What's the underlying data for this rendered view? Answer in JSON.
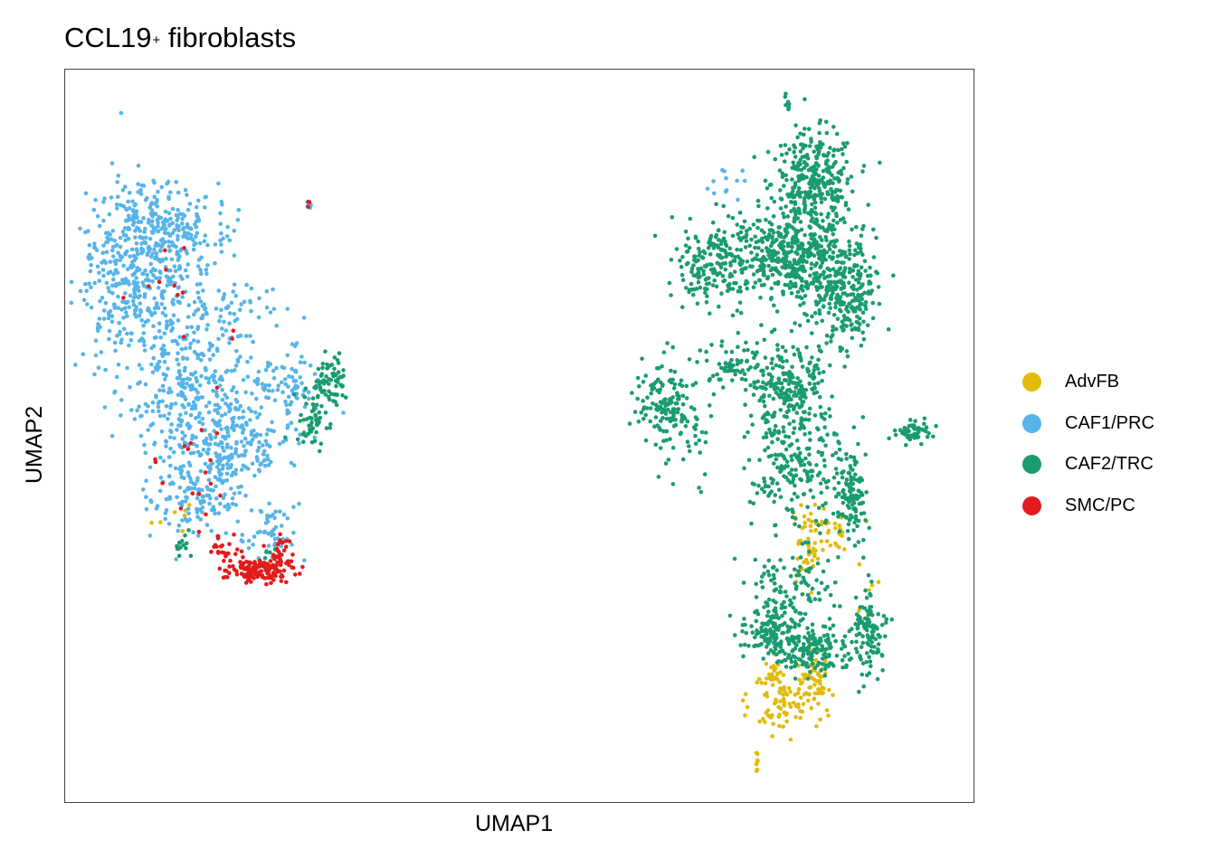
{
  "title": "CCL19",
  "title_superscript": "+",
  "title_suffix": " fibroblasts",
  "chart_data": {
    "type": "scatter",
    "title": "CCL19+ fibroblasts",
    "xlabel": "UMAP1",
    "ylabel": "UMAP2",
    "xlim": [
      0,
      100
    ],
    "ylim": [
      0,
      100
    ],
    "axis_ticks": "none",
    "grid": false,
    "legend_position": "right",
    "series": [
      {
        "name": "AdvFB",
        "color": "#E2BB0A",
        "regions": [
          {
            "cx": 78.5,
            "cy": 13.5,
            "sx": 1.6,
            "sy": 2.2,
            "n": 70,
            "seed": 11
          },
          {
            "cx": 82.6,
            "cy": 16.0,
            "sx": 0.9,
            "sy": 2.2,
            "n": 60,
            "seed": 12
          },
          {
            "cx": 81.8,
            "cy": 35.5,
            "sx": 0.8,
            "sy": 2.5,
            "n": 45,
            "seed": 13
          },
          {
            "cx": 84.5,
            "cy": 37.0,
            "sx": 0.9,
            "sy": 1.4,
            "n": 25,
            "seed": 14
          },
          {
            "cx": 77.9,
            "cy": 17.5,
            "sx": 0.6,
            "sy": 0.9,
            "n": 20,
            "seed": 15
          },
          {
            "cx": 76.3,
            "cy": 5.5,
            "sx": 0.2,
            "sy": 0.7,
            "n": 8,
            "seed": 16
          },
          {
            "cx": 88.5,
            "cy": 27.0,
            "sx": 0.6,
            "sy": 4.0,
            "n": 10,
            "seed": 17
          },
          {
            "cx": 13.0,
            "cy": 37.5,
            "sx": 2.5,
            "sy": 1.5,
            "n": 7,
            "seed": 18
          }
        ]
      },
      {
        "name": "CAF1/PRC",
        "color": "#56B4E9",
        "regions": [
          {
            "cx": 8.5,
            "cy": 72.0,
            "sx": 3.5,
            "sy": 6.0,
            "n": 420,
            "seed": 21
          },
          {
            "cx": 10.5,
            "cy": 78.5,
            "sx": 3.8,
            "sy": 2.5,
            "n": 200,
            "seed": 22
          },
          {
            "cx": 14.0,
            "cy": 56.0,
            "sx": 3.5,
            "sy": 5.5,
            "n": 320,
            "seed": 23
          },
          {
            "cx": 19.0,
            "cy": 48.5,
            "sx": 2.8,
            "sy": 2.8,
            "n": 150,
            "seed": 24
          },
          {
            "cx": 14.5,
            "cy": 42.0,
            "sx": 2.6,
            "sy": 2.6,
            "n": 140,
            "seed": 25
          },
          {
            "cx": 24.5,
            "cy": 56.5,
            "sx": 2.3,
            "sy": 3.0,
            "n": 90,
            "seed": 26
          },
          {
            "cx": 19.5,
            "cy": 67.5,
            "sx": 2.5,
            "sy": 2.0,
            "n": 50,
            "seed": 27
          },
          {
            "cx": 27.0,
            "cy": 81.5,
            "sx": 0.3,
            "sy": 0.3,
            "n": 5,
            "seed": 28
          },
          {
            "cx": 73.0,
            "cy": 84.5,
            "sx": 1.0,
            "sy": 0.8,
            "n": 12,
            "seed": 29
          },
          {
            "cx": 22.5,
            "cy": 36.5,
            "sx": 2.0,
            "sy": 2.0,
            "n": 55,
            "seed": 30
          }
        ]
      },
      {
        "name": "CAF2/TRC",
        "color": "#1A9B72",
        "regions": [
          {
            "cx": 82.5,
            "cy": 84.5,
            "sx": 2.3,
            "sy": 3.5,
            "n": 330,
            "seed": 41
          },
          {
            "cx": 78.0,
            "cy": 74.5,
            "sx": 3.0,
            "sy": 3.0,
            "n": 260,
            "seed": 42
          },
          {
            "cx": 83.0,
            "cy": 73.0,
            "sx": 2.5,
            "sy": 3.5,
            "n": 260,
            "seed": 43
          },
          {
            "cx": 86.5,
            "cy": 68.5,
            "sx": 1.5,
            "sy": 3.5,
            "n": 160,
            "seed": 44
          },
          {
            "cx": 71.5,
            "cy": 74.0,
            "sx": 2.3,
            "sy": 3.0,
            "n": 180,
            "seed": 45
          },
          {
            "cx": 79.5,
            "cy": 56.5,
            "sx": 2.3,
            "sy": 3.5,
            "n": 250,
            "seed": 46
          },
          {
            "cx": 80.5,
            "cy": 45.0,
            "sx": 2.5,
            "sy": 4.0,
            "n": 190,
            "seed": 47
          },
          {
            "cx": 86.5,
            "cy": 42.5,
            "sx": 0.9,
            "sy": 3.5,
            "n": 110,
            "seed": 48
          },
          {
            "cx": 66.0,
            "cy": 55.0,
            "sx": 1.4,
            "sy": 2.6,
            "n": 120,
            "seed": 49
          },
          {
            "cx": 68.5,
            "cy": 50.5,
            "sx": 1.5,
            "sy": 4.0,
            "n": 50,
            "seed": 50
          },
          {
            "cx": 73.5,
            "cy": 59.5,
            "sx": 2.0,
            "sy": 1.8,
            "n": 55,
            "seed": 51
          },
          {
            "cx": 78.0,
            "cy": 23.5,
            "sx": 1.8,
            "sy": 1.8,
            "n": 140,
            "seed": 52
          },
          {
            "cx": 82.5,
            "cy": 20.5,
            "sx": 2.2,
            "sy": 1.6,
            "n": 150,
            "seed": 53
          },
          {
            "cx": 88.5,
            "cy": 23.0,
            "sx": 0.8,
            "sy": 3.0,
            "n": 110,
            "seed": 54
          },
          {
            "cx": 80.5,
            "cy": 30.0,
            "sx": 2.5,
            "sy": 2.5,
            "n": 90,
            "seed": 55
          },
          {
            "cx": 93.5,
            "cy": 50.5,
            "sx": 1.0,
            "sy": 0.7,
            "n": 60,
            "seed": 56
          },
          {
            "cx": 29.0,
            "cy": 57.5,
            "sx": 1.0,
            "sy": 1.8,
            "n": 70,
            "seed": 57
          },
          {
            "cx": 27.0,
            "cy": 52.0,
            "sx": 1.0,
            "sy": 1.8,
            "n": 50,
            "seed": 58
          },
          {
            "cx": 79.5,
            "cy": 95.5,
            "sx": 0.25,
            "sy": 0.7,
            "n": 8,
            "seed": 59
          },
          {
            "cx": 13.0,
            "cy": 35.0,
            "sx": 0.4,
            "sy": 1.0,
            "n": 14,
            "seed": 60
          },
          {
            "cx": 23.0,
            "cy": 33.0,
            "sx": 0.6,
            "sy": 1.0,
            "n": 12,
            "seed": 61
          }
        ]
      },
      {
        "name": "SMC/PC",
        "color": "#E41A1C",
        "regions": [
          {
            "cx": 21.5,
            "cy": 31.5,
            "sx": 1.8,
            "sy": 0.8,
            "n": 120,
            "seed": 71
          },
          {
            "cx": 23.5,
            "cy": 33.0,
            "sx": 0.8,
            "sy": 1.4,
            "n": 40,
            "seed": 72
          },
          {
            "cx": 17.5,
            "cy": 34.0,
            "sx": 1.0,
            "sy": 1.0,
            "n": 25,
            "seed": 73
          },
          {
            "cx": 14.5,
            "cy": 46.0,
            "sx": 2.5,
            "sy": 6.0,
            "n": 18,
            "seed": 74
          },
          {
            "cx": 11.5,
            "cy": 70.0,
            "sx": 2.5,
            "sy": 6.0,
            "n": 10,
            "seed": 75
          },
          {
            "cx": 26.9,
            "cy": 81.5,
            "sx": 0.2,
            "sy": 0.2,
            "n": 3,
            "seed": 76
          },
          {
            "cx": 18.6,
            "cy": 63.8,
            "sx": 0.2,
            "sy": 0.2,
            "n": 2,
            "seed": 77
          }
        ]
      }
    ]
  }
}
